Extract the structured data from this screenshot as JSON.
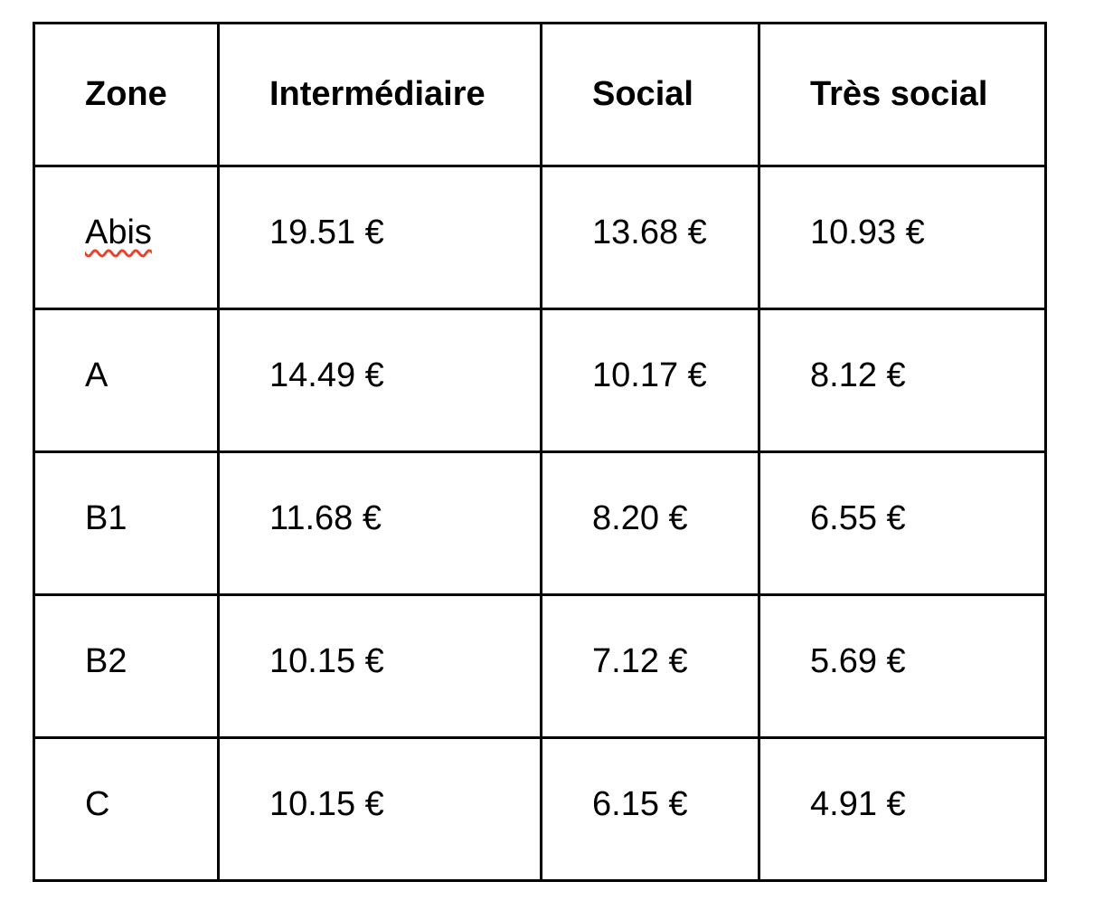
{
  "table": {
    "columns": [
      {
        "label": "Zone"
      },
      {
        "label": "Intermédiaire"
      },
      {
        "label": "Social"
      },
      {
        "label": "Très social"
      }
    ],
    "rows": [
      {
        "zone": "Abis",
        "zone_misspelled": true,
        "values": [
          "19.51 €",
          "13.68 €",
          "10.93 €"
        ]
      },
      {
        "zone": "A",
        "zone_misspelled": false,
        "values": [
          "14.49 €",
          "10.17 €",
          "8.12 €"
        ]
      },
      {
        "zone": "B1",
        "zone_misspelled": false,
        "values": [
          "11.68 €",
          "8.20 €",
          "6.55 €"
        ]
      },
      {
        "zone": "B2",
        "zone_misspelled": false,
        "values": [
          "10.15 €",
          "7.12 €",
          "5.69 €"
        ]
      },
      {
        "zone": "C",
        "zone_misspelled": false,
        "values": [
          "10.15 €",
          "6.15 €",
          "4.91 €"
        ]
      }
    ]
  },
  "colors": {
    "border": "#000000",
    "text": "#000000",
    "background": "#ffffff",
    "spellcheck_underline": "#e8432d"
  }
}
